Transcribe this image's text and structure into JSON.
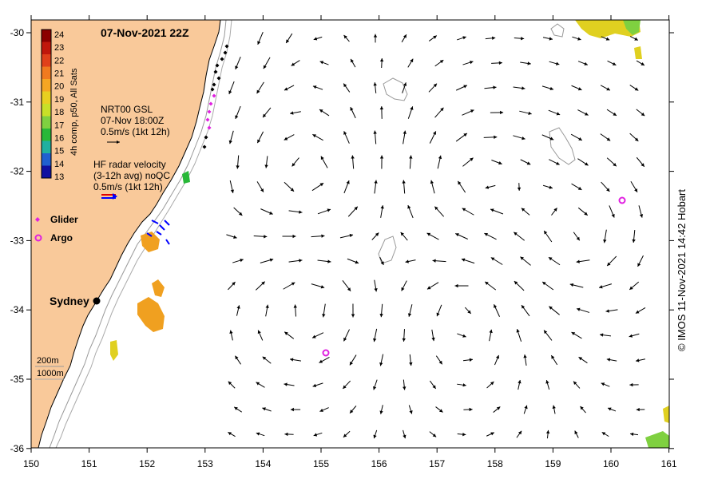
{
  "title": "07-Nov-2021 22Z",
  "colorbar": {
    "label": "4h comp, p50, All Sats",
    "ticks": [
      "24",
      "23",
      "22",
      "21",
      "20",
      "19",
      "18",
      "17",
      "16",
      "15",
      "14",
      "13"
    ],
    "colors": [
      "#8b0000",
      "#c0170b",
      "#e0401a",
      "#f07a1f",
      "#f5a623",
      "#e8d020",
      "#c8e028",
      "#7fd040",
      "#28b838",
      "#20b0a0",
      "#2060d0",
      "#1010a0"
    ]
  },
  "legend": {
    "gsl_title": "NRT00 GSL",
    "gsl_time": "07-Nov 18:00Z",
    "gsl_scale": "0.5m/s (1kt 12h)",
    "hf_title": "HF radar velocity",
    "hf_avg": "(3-12h avg) noQC",
    "hf_scale": "0.5m/s (1kt 12h)",
    "glider": "Glider",
    "argo": "Argo"
  },
  "places": {
    "sydney": "Sydney"
  },
  "depth_labels": [
    "200m",
    "1000m"
  ],
  "axes": {
    "x_ticks": [
      "150",
      "151",
      "152",
      "153",
      "154",
      "155",
      "156",
      "157",
      "158",
      "159",
      "160",
      "161"
    ],
    "y_ticks": [
      "-30",
      "-31",
      "-32",
      "-33",
      "-34",
      "-35",
      "-36"
    ]
  },
  "credit": "© IMOS 11-Nov-2021 14:42 Hobart",
  "colors": {
    "land": "#f9c99a",
    "coast": "#000000",
    "isobath": "#999999",
    "glider": "#e020e0",
    "argo": "#e020e0",
    "arrow": "#000000",
    "hf_red": "#e00000",
    "hf_blue": "#0000ff"
  }
}
